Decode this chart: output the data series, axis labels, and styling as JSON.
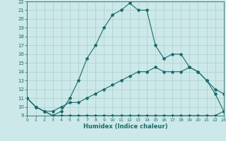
{
  "xlabel": "Humidex (Indice chaleur)",
  "bg_color": "#cce8e8",
  "grid_color": "#aacfcf",
  "line_color": "#1a6b6b",
  "xlim": [
    0,
    23
  ],
  "ylim": [
    9,
    22
  ],
  "xticks": [
    0,
    1,
    2,
    3,
    4,
    5,
    6,
    7,
    8,
    9,
    10,
    11,
    12,
    13,
    14,
    15,
    16,
    17,
    18,
    19,
    20,
    21,
    22,
    23
  ],
  "yticks": [
    9,
    10,
    11,
    12,
    13,
    14,
    15,
    16,
    17,
    18,
    19,
    20,
    21,
    22
  ],
  "line1_x": [
    0,
    1,
    2,
    3,
    4,
    5,
    6,
    7,
    8,
    9,
    10,
    11,
    12,
    13,
    14,
    15,
    16,
    17,
    18,
    19,
    20,
    21,
    22,
    23
  ],
  "line1_y": [
    11,
    10,
    9.5,
    9,
    9,
    9,
    9,
    9,
    9,
    9,
    9,
    9,
    9,
    9,
    9,
    9,
    9,
    9,
    9,
    9,
    9,
    9,
    9,
    9.5
  ],
  "line2_x": [
    0,
    1,
    2,
    3,
    4,
    5,
    6,
    7,
    8,
    9,
    10,
    11,
    12,
    13,
    14,
    15,
    16,
    17,
    18,
    19,
    20,
    21,
    22,
    23
  ],
  "line2_y": [
    11,
    10,
    9.5,
    9.5,
    10,
    10.5,
    10.5,
    11,
    11.5,
    12,
    12.5,
    13,
    13.5,
    14,
    14,
    14.5,
    14,
    14,
    14,
    14.5,
    14,
    13,
    12,
    11.5
  ],
  "line3_x": [
    0,
    1,
    2,
    3,
    4,
    5,
    6,
    7,
    8,
    9,
    10,
    11,
    12,
    13,
    14,
    15,
    16,
    17,
    18,
    19,
    20,
    21,
    22,
    23
  ],
  "line3_y": [
    11,
    10,
    9.5,
    9,
    9.5,
    11,
    13,
    15.5,
    17,
    19,
    20.5,
    21,
    21.8,
    21,
    21,
    17,
    15.5,
    16,
    16,
    14.5,
    14,
    13,
    11.5,
    9.5
  ]
}
